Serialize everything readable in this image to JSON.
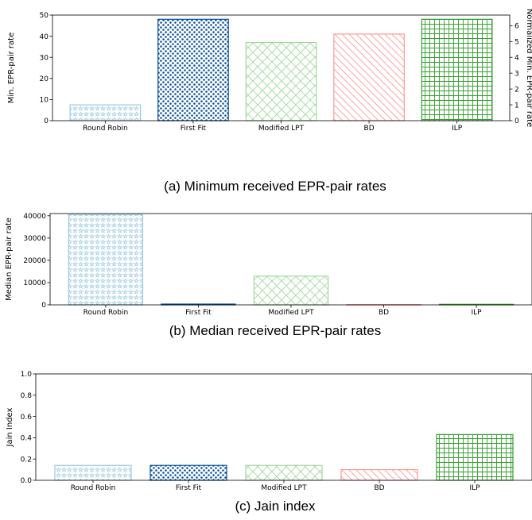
{
  "chart_data": [
    {
      "type": "bar",
      "caption": "(a) Minimum received EPR-pair rates",
      "categories": [
        "Round Robin",
        "First Fit",
        "Modified LPT",
        "BD",
        "ILP"
      ],
      "values": [
        7.5,
        48,
        37,
        41,
        48
      ],
      "ylabel": "Min. EPR-pair rate",
      "ylim": [
        0,
        50
      ],
      "yticks": [
        0,
        10,
        20,
        30,
        40,
        50
      ],
      "y2label": "Normalized Min. EPR-pair rate",
      "y2lim": [
        0,
        6.67
      ],
      "y2ticks": [
        0,
        1,
        2,
        3,
        4,
        5,
        6
      ],
      "grid": false
    },
    {
      "type": "bar",
      "caption": "(b) Median received EPR-pair rates",
      "categories": [
        "Round Robin",
        "First Fit",
        "Modified LPT",
        "BD",
        "ILP"
      ],
      "values": [
        40500,
        350,
        12900,
        150,
        250
      ],
      "ylabel": "Median EPR-pair rate",
      "ylim": [
        0,
        41000
      ],
      "yticks": [
        0,
        10000,
        20000,
        30000,
        40000
      ],
      "grid": false
    },
    {
      "type": "bar",
      "caption": "(c) Jain index",
      "categories": [
        "Round Robin",
        "First Fit",
        "Modified LPT",
        "BD",
        "ILP"
      ],
      "values": [
        0.14,
        0.14,
        0.14,
        0.1,
        0.43
      ],
      "ylabel": "Jain Index",
      "ylim": [
        0,
        1.0
      ],
      "yticks": [
        "0.0",
        "0.2",
        "0.4",
        "0.6",
        "0.8",
        "1.0"
      ],
      "grid": false
    }
  ],
  "styles": {
    "colors": [
      "#9ecae1",
      "#08519c",
      "#a1d99b",
      "#fb9a99",
      "#33a02c"
    ],
    "patterns": [
      "stars",
      "dots",
      "crosshatch-diagonal",
      "diagonal",
      "grid"
    ]
  }
}
